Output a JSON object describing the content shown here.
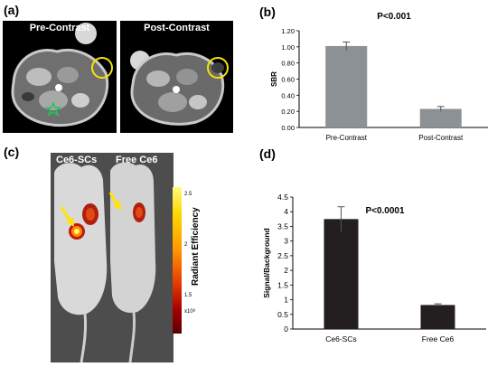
{
  "panels": {
    "a": {
      "label": "(a)",
      "titles": [
        "Pre-Contrast",
        "Post-Contrast"
      ]
    },
    "b": {
      "label": "(b)"
    },
    "c": {
      "label": "(c)",
      "titles": [
        "Ce6-SCs",
        "Free Ce6"
      ],
      "colorbar": {
        "title": "Radiant Efficiency",
        "ticks": [
          "2.5",
          "2",
          "1.5",
          "x10⁸"
        ],
        "colors": [
          "#fffb80",
          "#ffd700",
          "#ff9a00",
          "#e53a00",
          "#a30000",
          "#5a0000"
        ]
      }
    },
    "d": {
      "label": "(d)"
    }
  },
  "chart_data": [
    {
      "type": "bar",
      "panel": "b",
      "title": "P<0.001",
      "xlabel": "",
      "ylabel": "SBR",
      "categories": [
        "Pre-Contrast",
        "Post-Contrast"
      ],
      "values": [
        1.01,
        0.23
      ],
      "errors": [
        0.05,
        0.03
      ],
      "ylim": [
        0,
        1.2
      ],
      "yticks": [
        "0.00",
        "0.20",
        "0.40",
        "0.60",
        "0.80",
        "1.00",
        "1.20"
      ],
      "grid": false,
      "bar_color": "#8c9196"
    },
    {
      "type": "bar",
      "panel": "d",
      "title": "P<0.0001",
      "xlabel": "",
      "ylabel": "Signal/Background",
      "categories": [
        "Ce6-SCs",
        "Free Ce6"
      ],
      "values": [
        3.75,
        0.82
      ],
      "errors": [
        0.42,
        0.04
      ],
      "ylim": [
        0,
        4.5
      ],
      "yticks": [
        "0",
        "0.5",
        "1",
        "1.5",
        "2",
        "2.5",
        "3",
        "3.5",
        "4",
        "4.5"
      ],
      "grid": false,
      "bar_color": "#231f20"
    }
  ]
}
